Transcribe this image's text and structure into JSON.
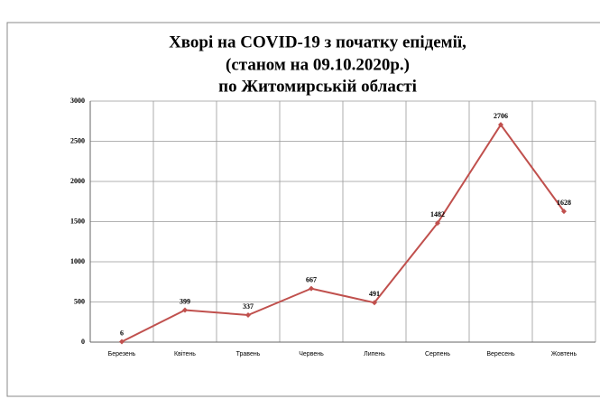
{
  "chart_data": {
    "type": "line",
    "title": [
      "Хворі на COVID-19 з початку епідемії,",
      "(станом на 09.10.2020р.)",
      "по Житомирській області"
    ],
    "categories": [
      "Березень",
      "Квітень",
      "Травень",
      "Червень",
      "Липень",
      "Серпень",
      "Вересень",
      "Жовтень"
    ],
    "series": [
      {
        "name": "Хворі",
        "color": "#c0504d",
        "values": [
          6,
          399,
          337,
          667,
          491,
          1482,
          2706,
          1628
        ]
      }
    ],
    "ylim": [
      0,
      3000
    ],
    "yticks": [
      0,
      500,
      1000,
      1500,
      2000,
      2500,
      3000
    ],
    "grid": true
  }
}
